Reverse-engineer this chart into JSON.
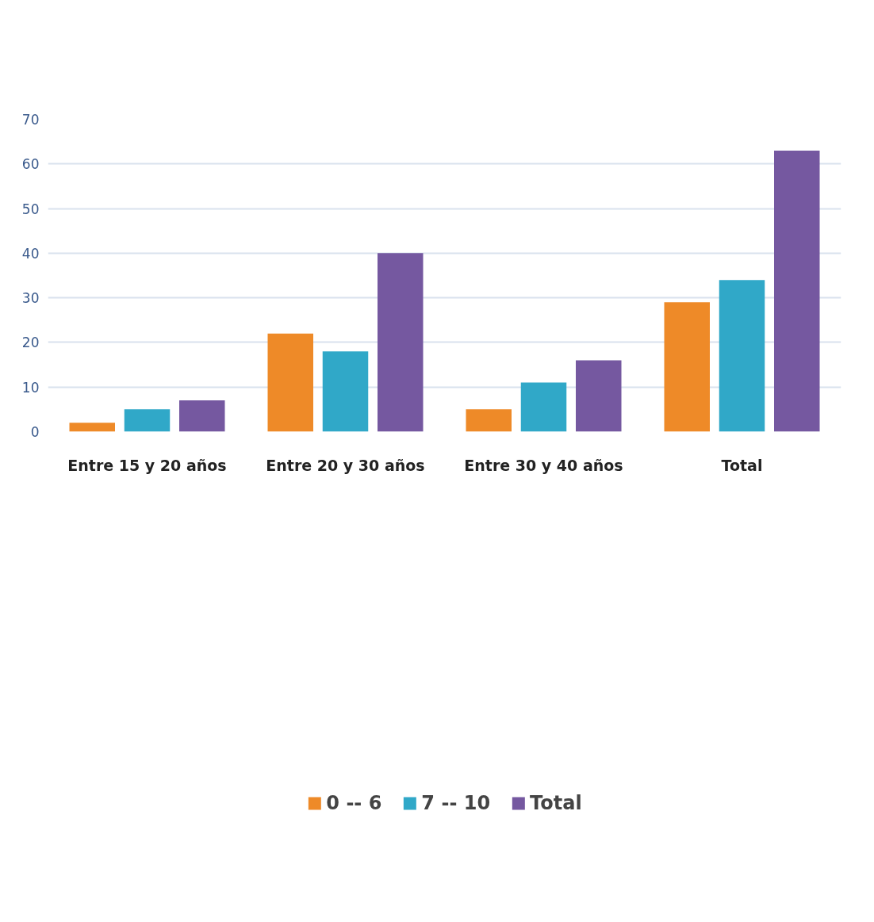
{
  "chart_data": {
    "type": "bar",
    "categories": [
      "Entre 15 y 20 años",
      "Entre 20 y 30 años",
      "Entre 30 y 40 años",
      "Total"
    ],
    "series": [
      {
        "name": "0 -- 6",
        "color": "#ee8a28",
        "values": [
          2,
          22,
          5,
          29
        ]
      },
      {
        "name": "7 -- 10",
        "color": "#30a8c8",
        "values": [
          5,
          18,
          11,
          34
        ]
      },
      {
        "name": "Total",
        "color": "#7558a0",
        "values": [
          7,
          40,
          16,
          63
        ]
      }
    ],
    "ylim": [
      0,
      70
    ],
    "yticks": [
      0,
      10,
      20,
      30,
      40,
      50,
      60,
      70
    ],
    "grid": "y",
    "legend": "bottom"
  }
}
